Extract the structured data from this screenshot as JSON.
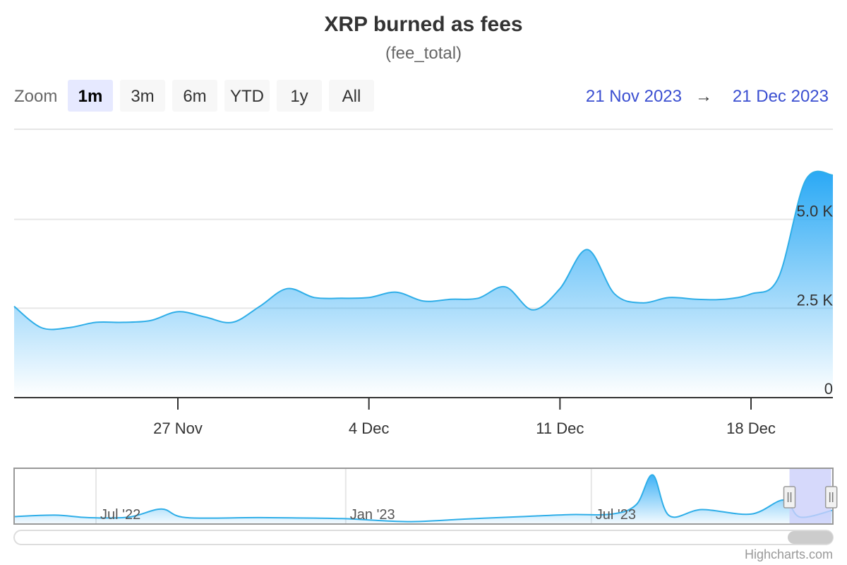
{
  "title": "XRP burned as fees",
  "subtitle": "(fee_total)",
  "range_selector": {
    "label": "Zoom",
    "buttons": [
      "1m",
      "3m",
      "6m",
      "YTD",
      "1y",
      "All"
    ],
    "active": "1m",
    "from_date": "21 Nov 2023",
    "arrow": "→",
    "to_date": "21 Dec 2023"
  },
  "colors": {
    "series": "#2faee8",
    "fill_top": "#2aa9f5",
    "grid": "#e6e6e6",
    "axis": "#333333",
    "navigator_mask": "#ccd0fa",
    "date_link": "#3b4fd1"
  },
  "credits": "Highcharts.com",
  "chart_data": {
    "type": "area",
    "series_name": "fee_total",
    "y_axis": {
      "min": 0,
      "max": 7500,
      "ticks": [
        0,
        2500,
        5000
      ],
      "tick_labels": [
        "0",
        "2.5 K",
        "5.0 K"
      ]
    },
    "x_axis": {
      "min_day": 0,
      "max_day": 30,
      "ticks": [
        {
          "day": 6,
          "label": "27 Nov"
        },
        {
          "day": 13,
          "label": "4 Dec"
        },
        {
          "day": 20,
          "label": "11 Dec"
        },
        {
          "day": 27,
          "label": "18 Dec"
        }
      ]
    },
    "x_start": "21 Nov 2023",
    "days": [
      0,
      1,
      2,
      3,
      4,
      5,
      6,
      7,
      8,
      9,
      10,
      11,
      12,
      13,
      14,
      15,
      16,
      17,
      18,
      19,
      20,
      21,
      22,
      23,
      24,
      25,
      26,
      27,
      28,
      29,
      30
    ],
    "values": [
      2550,
      1950,
      1950,
      2100,
      2100,
      2150,
      2400,
      2250,
      2100,
      2550,
      3050,
      2800,
      2780,
      2800,
      2950,
      2700,
      2750,
      2780,
      3100,
      2450,
      3050,
      4150,
      2900,
      2650,
      2800,
      2750,
      2750,
      2900,
      3350,
      6100,
      6250
    ],
    "navigator": {
      "x_min": 0,
      "x_max": 100,
      "y_max": 10,
      "points": [
        [
          0,
          1.2
        ],
        [
          5,
          1.5
        ],
        [
          9,
          1.0
        ],
        [
          14,
          1.1
        ],
        [
          18,
          2.7
        ],
        [
          21,
          1.0
        ],
        [
          30,
          1.0
        ],
        [
          40,
          0.8
        ],
        [
          48,
          0.2
        ],
        [
          55,
          0.7
        ],
        [
          62,
          1.2
        ],
        [
          68,
          1.6
        ],
        [
          73,
          1.7
        ],
        [
          76,
          3.6
        ],
        [
          78,
          9.5
        ],
        [
          80,
          1.4
        ],
        [
          84,
          2.6
        ],
        [
          90,
          1.7
        ],
        [
          94,
          4.5
        ],
        [
          96,
          1.1
        ],
        [
          100,
          2.5
        ]
      ],
      "ticks": [
        {
          "x": 10,
          "label": "Jul '22"
        },
        {
          "x": 40.5,
          "label": "Jan '23"
        },
        {
          "x": 70.5,
          "label": "Jul '23"
        }
      ],
      "selected_range": [
        94.7,
        99.8
      ]
    }
  }
}
